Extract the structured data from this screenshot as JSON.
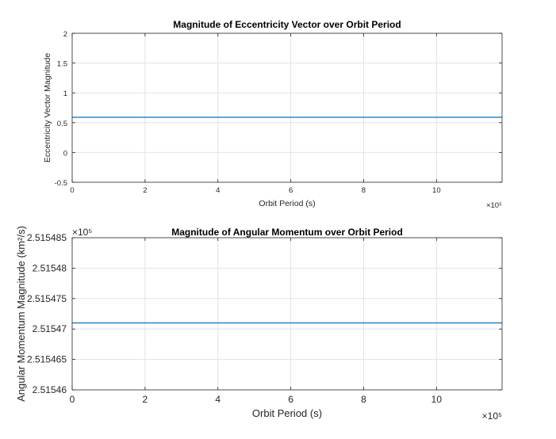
{
  "chart_data": [
    {
      "type": "line",
      "title": "Magnitude of Eccentricity Vector over Orbit Period",
      "xlabel": "Orbit Period (s)",
      "ylabel": "Eccentricity Vector Magnitude",
      "xlim": [
        0,
        1180000
      ],
      "ylim": [
        -0.5,
        2
      ],
      "x_ticks": [
        0,
        200000,
        400000,
        600000,
        800000,
        1000000
      ],
      "x_tick_labels": [
        "0",
        "2",
        "4",
        "6",
        "8",
        "10"
      ],
      "x_multiplier": "×10⁵",
      "y_ticks": [
        -0.5,
        0,
        0.5,
        1,
        1.5,
        2
      ],
      "y_tick_labels": [
        "-0.5",
        "0",
        "0.5",
        "1",
        "1.5",
        "2"
      ],
      "y_multiplier": "",
      "grid": true,
      "line_color": "#0072BD",
      "series": [
        {
          "x": [
            0,
            1180000
          ],
          "values": [
            0.59,
            0.59
          ]
        }
      ]
    },
    {
      "type": "line",
      "title": "Magnitude of Angular Momentum over Orbit Period",
      "xlabel": "Orbit Period (s)",
      "ylabel": "Angular Momentum Magnitude (km²/s)",
      "xlim": [
        0,
        1180000
      ],
      "ylim": [
        251546,
        251548.5
      ],
      "x_ticks": [
        0,
        200000,
        400000,
        600000,
        800000,
        1000000
      ],
      "x_tick_labels": [
        "0",
        "2",
        "4",
        "6",
        "8",
        "10"
      ],
      "x_multiplier": "×10⁵",
      "y_ticks": [
        251546,
        251546.5,
        251547,
        251547.5,
        251548,
        251548.5
      ],
      "y_tick_labels": [
        "2.51546",
        "2.515465",
        "2.51547",
        "2.515475",
        "2.51548",
        "2.515485"
      ],
      "y_multiplier": "×10⁵",
      "grid": true,
      "line_color": "#0072BD",
      "series": [
        {
          "x": [
            0,
            1180000
          ],
          "values": [
            251547.1,
            251547.1
          ]
        }
      ]
    }
  ]
}
